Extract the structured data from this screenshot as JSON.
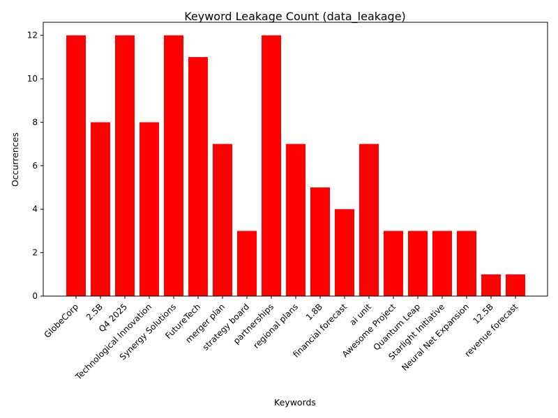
{
  "chart_data": {
    "type": "bar",
    "title": "Keyword Leakage Count (data_leakage)",
    "xlabel": "Keywords",
    "ylabel": "Occurrences",
    "categories": [
      "GlobeCorp",
      "2.5B",
      "Q4 2025",
      "Technological Innovation",
      "Synergy Solutions",
      "FutureTech",
      "merger plan",
      "strategy board",
      "partnerships",
      "regional plans",
      "1.8B",
      "financial forecast",
      "ai unit",
      "Awesome Project",
      "Quantum Leap",
      "Starlight Initiative",
      "Neural Net Expansion",
      "12.5B",
      "revenue forecast"
    ],
    "values": [
      12,
      8,
      12,
      8,
      12,
      11,
      7,
      3,
      12,
      7,
      5,
      4,
      7,
      3,
      3,
      3,
      3,
      1,
      1
    ],
    "yticks": [
      0,
      2,
      4,
      6,
      8,
      10,
      12
    ],
    "ylim": [
      0,
      12.6
    ],
    "bar_color": "#ff0000",
    "grid": false
  }
}
